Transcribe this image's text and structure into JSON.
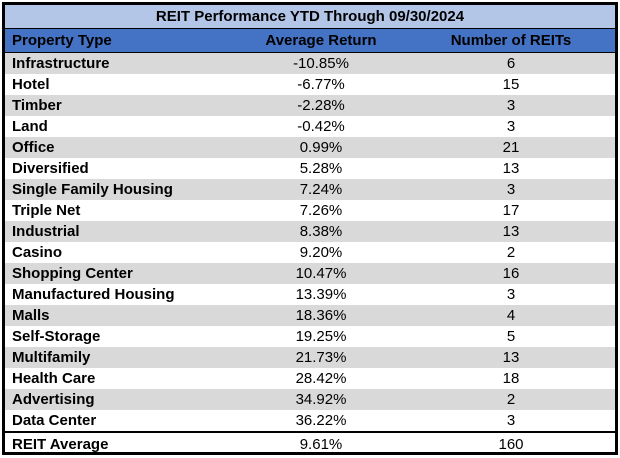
{
  "table": {
    "title": "REIT Performance YTD Through 09/30/2024",
    "columns": [
      "Property Type",
      "Average Return",
      "Number of REITs"
    ],
    "rows": [
      [
        "Infrastructure",
        "-10.85%",
        "6"
      ],
      [
        "Hotel",
        "-6.77%",
        "15"
      ],
      [
        "Timber",
        "-2.28%",
        "3"
      ],
      [
        "Land",
        "-0.42%",
        "3"
      ],
      [
        "Office",
        "0.99%",
        "21"
      ],
      [
        "Diversified",
        "5.28%",
        "13"
      ],
      [
        "Single Family Housing",
        "7.24%",
        "3"
      ],
      [
        "Triple Net",
        "7.26%",
        "17"
      ],
      [
        "Industrial",
        "8.38%",
        "13"
      ],
      [
        "Casino",
        "9.20%",
        "2"
      ],
      [
        "Shopping Center",
        "10.47%",
        "16"
      ],
      [
        "Manufactured Housing",
        "13.39%",
        "3"
      ],
      [
        "Malls",
        "18.36%",
        "4"
      ],
      [
        "Self-Storage",
        "19.25%",
        "5"
      ],
      [
        "Multifamily",
        "21.73%",
        "13"
      ],
      [
        "Health Care",
        "28.42%",
        "18"
      ],
      [
        "Advertising",
        "34.92%",
        "2"
      ],
      [
        "Data Center",
        "36.22%",
        "3"
      ]
    ],
    "footer": [
      "REIT Average",
      "9.61%",
      "160"
    ]
  },
  "chart_data": {
    "type": "table",
    "title": "REIT Performance YTD Through 09/30/2024",
    "categories": [
      "Infrastructure",
      "Hotel",
      "Timber",
      "Land",
      "Office",
      "Diversified",
      "Single Family Housing",
      "Triple Net",
      "Industrial",
      "Casino",
      "Shopping Center",
      "Manufactured Housing",
      "Malls",
      "Self-Storage",
      "Multifamily",
      "Health Care",
      "Advertising",
      "Data Center"
    ],
    "series": [
      {
        "name": "Average Return (%)",
        "values": [
          -10.85,
          -6.77,
          -2.28,
          -0.42,
          0.99,
          5.28,
          7.24,
          7.26,
          8.38,
          9.2,
          10.47,
          13.39,
          18.36,
          19.25,
          21.73,
          28.42,
          34.92,
          36.22
        ]
      },
      {
        "name": "Number of REITs",
        "values": [
          6,
          15,
          3,
          3,
          21,
          13,
          3,
          17,
          13,
          2,
          16,
          3,
          4,
          5,
          13,
          18,
          2,
          3
        ]
      }
    ],
    "summary": {
      "label": "REIT Average",
      "average_return_pct": 9.61,
      "number_of_reits": 160
    }
  },
  "colors": {
    "title_bg": "#b4c6e7",
    "header_bg": "#4472c4",
    "stripe_bg": "#d9d9d9",
    "row_bg": "#ffffff",
    "border": "#000000",
    "text": "#000000"
  }
}
